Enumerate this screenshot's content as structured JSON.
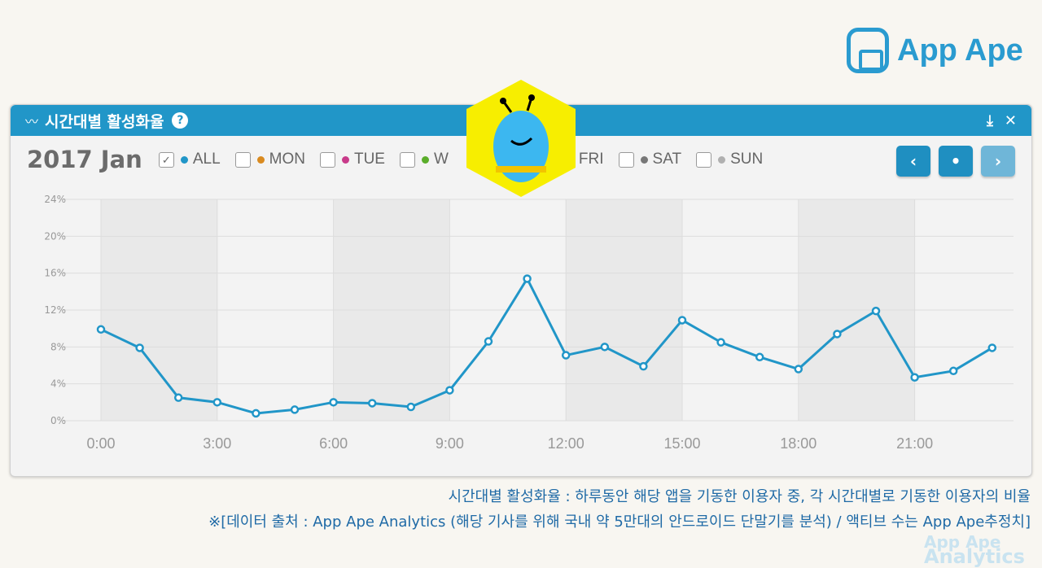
{
  "brand": "App Ape",
  "panel": {
    "title": "시간대별 활성화율",
    "help": "?",
    "download_icon": "download-icon",
    "close": "✕"
  },
  "controls": {
    "month": "2017 Jan",
    "prev": "‹",
    "today": "•",
    "next": "›",
    "legend": [
      {
        "label": "ALL",
        "color": "#2196c8",
        "checked": true
      },
      {
        "label": "MON",
        "color": "#d98a1f",
        "checked": false
      },
      {
        "label": "TUE",
        "color": "#c83a8a",
        "checked": false
      },
      {
        "label": "W",
        "color": "#5aad2a",
        "checked": false
      },
      {
        "label": "FRI",
        "color": "#d9432f",
        "checked": false
      },
      {
        "label": "SAT",
        "color": "#777777",
        "checked": false
      },
      {
        "label": "SUN",
        "color": "#b0b0b0",
        "checked": false
      }
    ]
  },
  "watermark": {
    "line1": "App Ape",
    "line2": "Analytics"
  },
  "chart_data": {
    "type": "line",
    "x": [
      "0:00",
      "1:00",
      "2:00",
      "3:00",
      "4:00",
      "5:00",
      "6:00",
      "7:00",
      "8:00",
      "9:00",
      "10:00",
      "11:00",
      "12:00",
      "13:00",
      "14:00",
      "15:00",
      "16:00",
      "17:00",
      "18:00",
      "19:00",
      "20:00",
      "21:00",
      "22:00",
      "23:00"
    ],
    "series": [
      {
        "name": "ALL",
        "color": "#2196c8",
        "values": [
          9.9,
          7.9,
          2.5,
          2.0,
          0.8,
          1.2,
          2.0,
          1.9,
          1.5,
          3.3,
          8.6,
          15.4,
          7.1,
          8.0,
          5.9,
          10.9,
          8.5,
          6.9,
          5.6,
          9.4,
          11.9,
          4.7,
          5.4,
          7.9
        ]
      }
    ],
    "xticks": [
      "0:00",
      "3:00",
      "6:00",
      "9:00",
      "12:00",
      "15:00",
      "18:00",
      "21:00"
    ],
    "yticks": [
      "0%",
      "4%",
      "8%",
      "12%",
      "16%",
      "20%",
      "24%"
    ],
    "ylim": [
      0,
      24
    ],
    "grid": true
  },
  "caption": {
    "line1": "시간대별 활성화율 : 하루동안 해당 앱을 기동한 이용자 중, 각 시간대별로 기동한 이용자의 비율",
    "line2": "※[데이터 출처 : App Ape Analytics (해당 기사를 위해 국내 약 5만대의 안드로이드 단말기를 분석) / 액티브 수는 App Ape추정치]"
  }
}
